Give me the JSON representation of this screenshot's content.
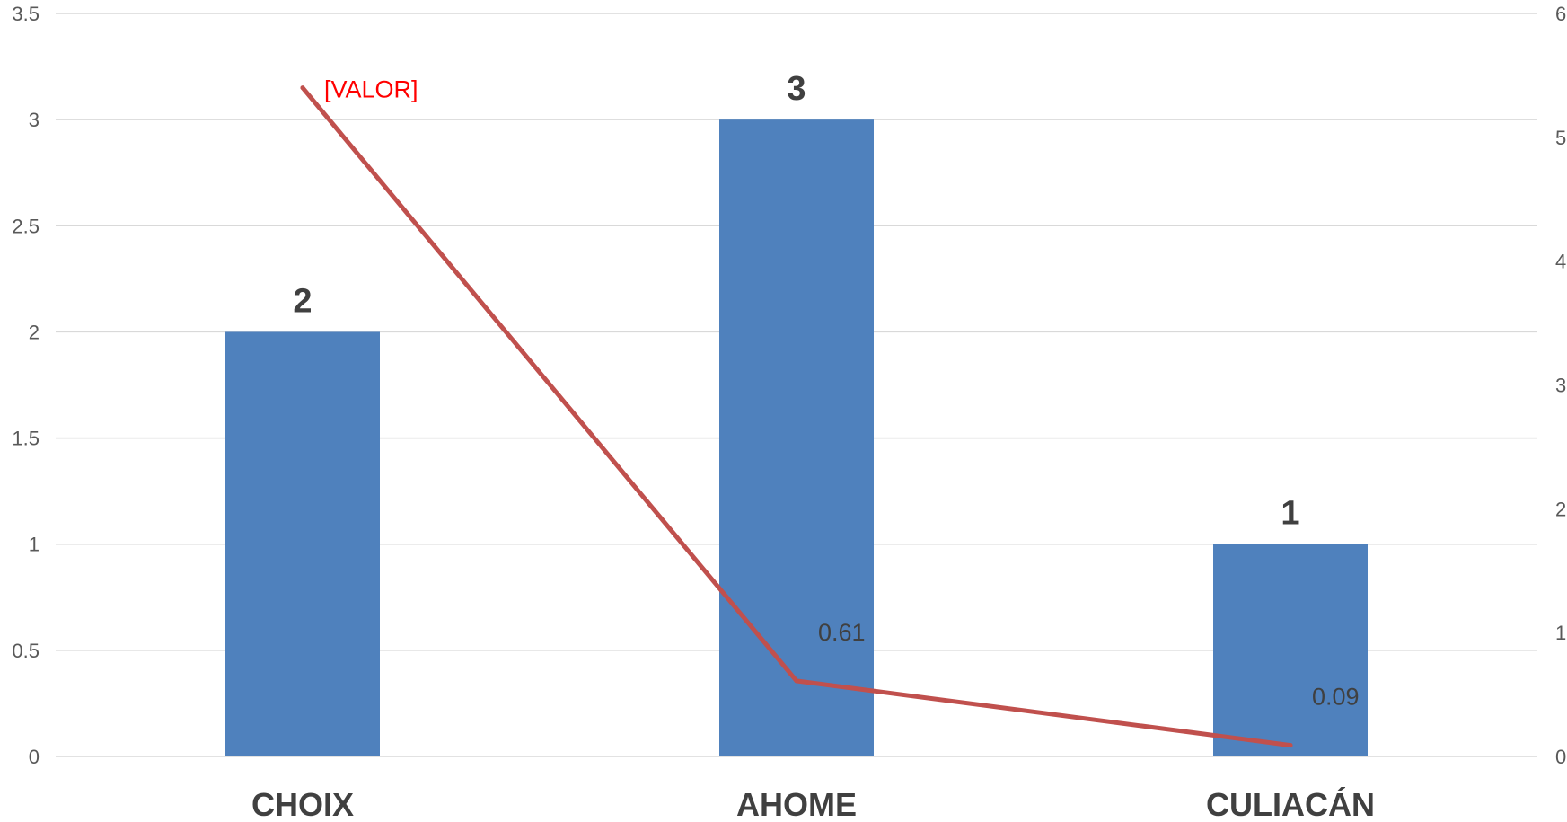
{
  "chart_data": {
    "type": "bar",
    "categories": [
      "CHOIX",
      "AHOME",
      "CULIACÁN"
    ],
    "series": [
      {
        "type": "bar",
        "axis": "left",
        "values": [
          2,
          3,
          1
        ],
        "data_labels": [
          "2",
          "3",
          "1"
        ],
        "color": "#4F81BD"
      },
      {
        "type": "line",
        "axis": "right",
        "values": [
          5.4,
          0.61,
          0.09
        ],
        "data_labels": [
          "[VALOR]",
          "0.61",
          "0.09"
        ],
        "color": "#C0504D",
        "label_colors": [
          "#FF0000",
          "#404040",
          "#404040"
        ]
      }
    ],
    "y_left": {
      "min": 0,
      "max": 3.5,
      "step": 0.5,
      "ticks": [
        "0",
        "0.5",
        "1",
        "1.5",
        "2",
        "2.5",
        "3",
        "3.5"
      ]
    },
    "y_right": {
      "min": 0,
      "max": 6,
      "step": 1,
      "ticks": [
        "0",
        "1",
        "2",
        "3",
        "4",
        "5",
        "6"
      ]
    },
    "grid": true,
    "gridline_color": "#D9D9D9",
    "legend": "none"
  }
}
